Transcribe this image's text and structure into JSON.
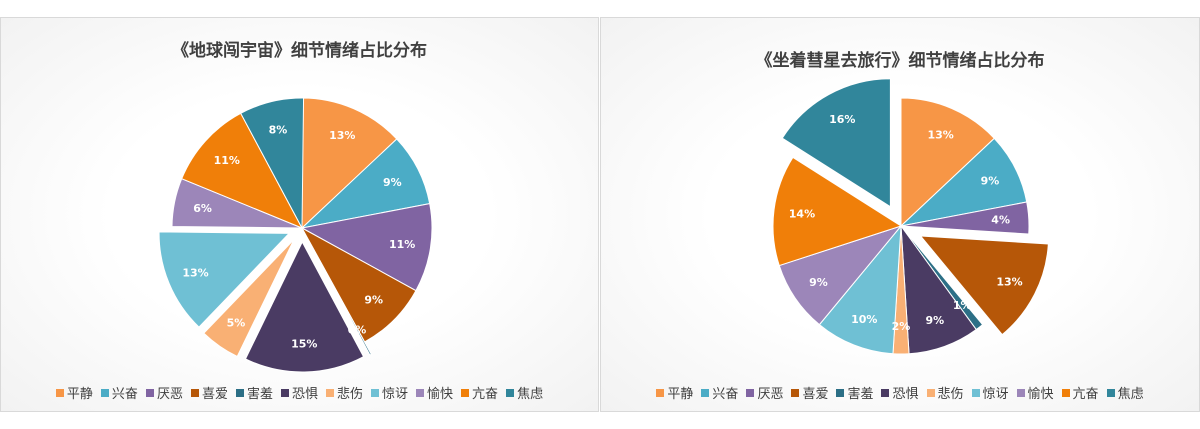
{
  "chart_data": [
    {
      "type": "pie",
      "title": "《地球闯宇宙》细节情绪占比分布",
      "categories": [
        "平静",
        "兴奋",
        "厌恶",
        "喜爱",
        "害羞",
        "恐惧",
        "悲伤",
        "惊讶",
        "愉快",
        "亢奋",
        "焦虑"
      ],
      "values": [
        13,
        9,
        11,
        9,
        0,
        15,
        5,
        13,
        6,
        11,
        8
      ],
      "labels": [
        "13%",
        "9%",
        "11%",
        "9%",
        "0%",
        "15%",
        "5%",
        "13%",
        "6%",
        "11%",
        "8%"
      ],
      "exploded": [
        "害羞",
        "恐惧",
        "悲伤",
        "惊讶"
      ],
      "legend_position": "bottom"
    },
    {
      "type": "pie",
      "title": "《坐着彗星去旅行》细节情绪占比分布",
      "categories": [
        "平静",
        "兴奋",
        "厌恶",
        "喜爱",
        "害羞",
        "恐惧",
        "悲伤",
        "惊讶",
        "愉快",
        "亢奋",
        "焦虑"
      ],
      "values": [
        13,
        9,
        4,
        13,
        1,
        9,
        2,
        10,
        9,
        14,
        16
      ],
      "labels": [
        "13%",
        "9%",
        "4%",
        "13%",
        "1%",
        "9%",
        "2%",
        "10%",
        "9%",
        "14%",
        "16%"
      ],
      "exploded": [
        "喜爱",
        "焦虑"
      ],
      "legend_position": "bottom"
    }
  ],
  "colors": [
    "#F79646",
    "#4BACC6",
    "#8064A2",
    "#B65708",
    "#2C6F86",
    "#4A3B63",
    "#F9B074",
    "#6FC0D4",
    "#9C86B9",
    "#F07F09",
    "#31869B"
  ]
}
